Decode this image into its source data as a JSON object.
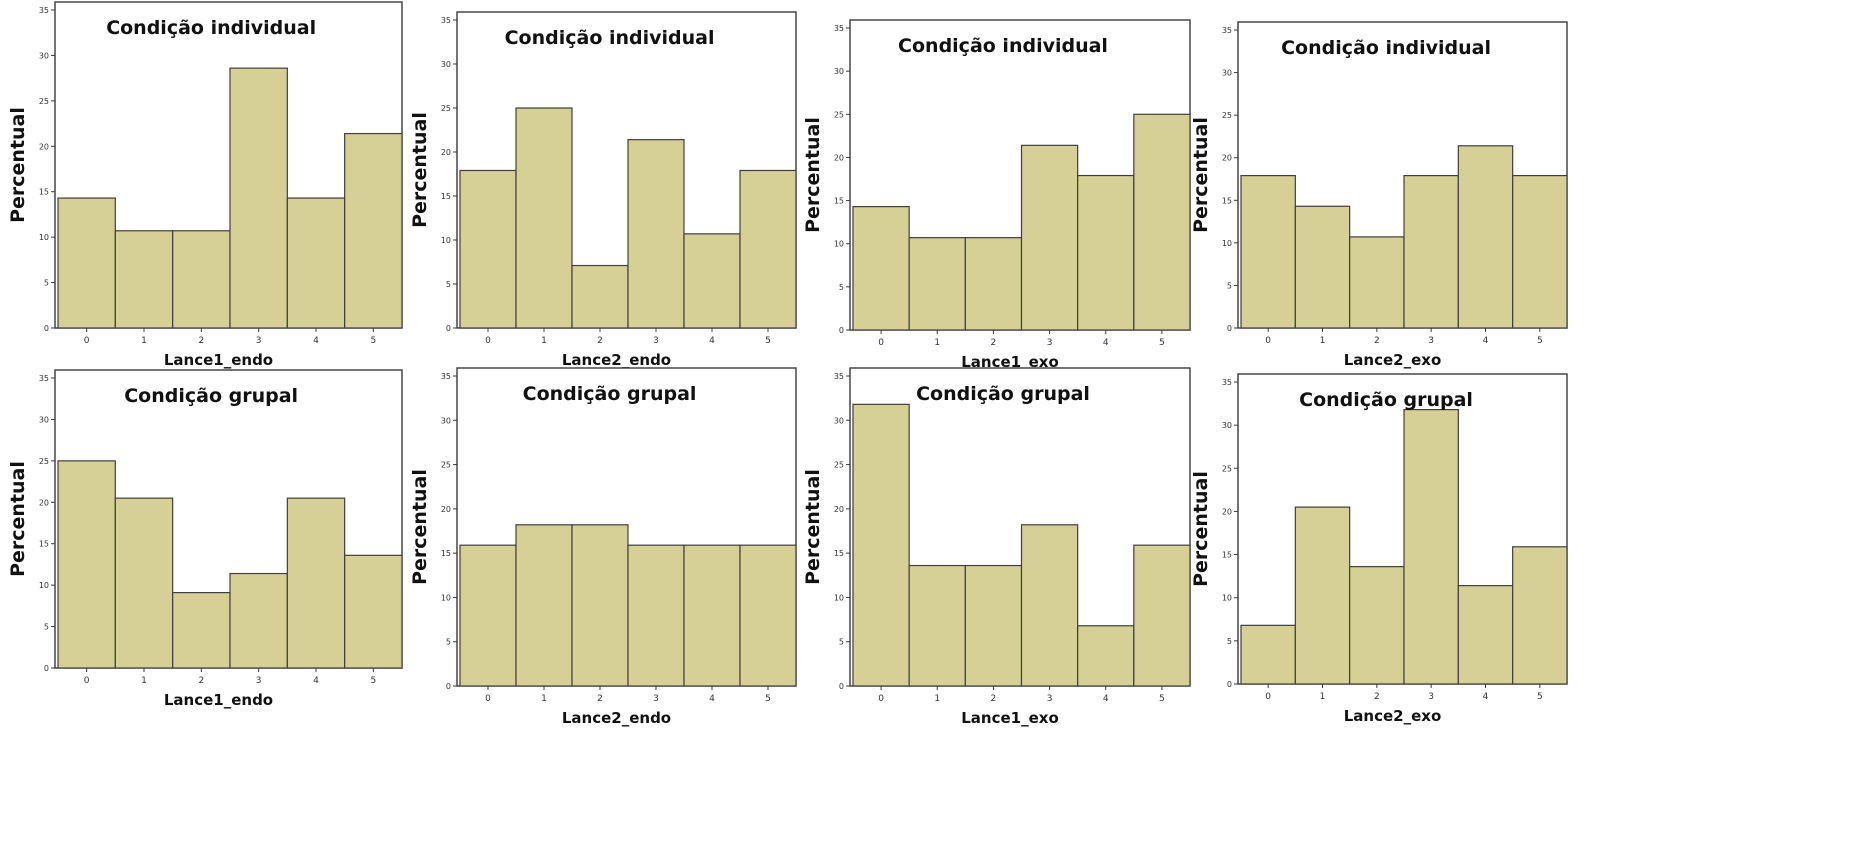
{
  "chart_data": [
    {
      "type": "bar",
      "title": "Condição individual",
      "ylabel": "Percentual",
      "xlabel": "Lance1_endo",
      "categories": [
        "0",
        "1",
        "2",
        "3",
        "4",
        "5"
      ],
      "values": [
        14.3,
        10.7,
        10.7,
        28.6,
        14.3,
        21.4
      ],
      "ylim": [
        0,
        35
      ],
      "yticks": [
        "0",
        "5",
        "10",
        "15",
        "20",
        "25",
        "30",
        "35"
      ]
    },
    {
      "type": "bar",
      "title": "Condição individual",
      "ylabel": "Percentual",
      "xlabel": "Lance2_endo",
      "categories": [
        "0",
        "1",
        "2",
        "3",
        "4",
        "5"
      ],
      "values": [
        17.9,
        25.0,
        7.1,
        21.4,
        10.7,
        17.9
      ],
      "ylim": [
        0,
        35
      ],
      "yticks": [
        "0",
        "5",
        "10",
        "15",
        "20",
        "25",
        "30",
        "35"
      ]
    },
    {
      "type": "bar",
      "title": "Condição individual",
      "ylabel": "Percentual",
      "xlabel": "Lance1_exo",
      "categories": [
        "0",
        "1",
        "2",
        "3",
        "4",
        "5"
      ],
      "values": [
        14.3,
        10.7,
        10.7,
        21.4,
        17.9,
        25.0
      ],
      "ylim": [
        0,
        35
      ],
      "yticks": [
        "0",
        "5",
        "10",
        "15",
        "20",
        "25",
        "30",
        "35"
      ]
    },
    {
      "type": "bar",
      "title": "Condição individual",
      "ylabel": "Percentual",
      "xlabel": "Lance2_exo",
      "categories": [
        "0",
        "1",
        "2",
        "3",
        "4",
        "5"
      ],
      "values": [
        17.9,
        14.3,
        10.7,
        17.9,
        21.4,
        17.9
      ],
      "ylim": [
        0,
        35
      ],
      "yticks": [
        "0",
        "5",
        "10",
        "15",
        "20",
        "25",
        "30",
        "35"
      ]
    },
    {
      "type": "bar",
      "title": "Condição grupal",
      "ylabel": "Percentual",
      "xlabel": "Lance1_endo",
      "categories": [
        "0",
        "1",
        "2",
        "3",
        "4",
        "5"
      ],
      "values": [
        25.0,
        20.5,
        9.1,
        11.4,
        20.5,
        13.6
      ],
      "ylim": [
        0,
        35
      ],
      "yticks": [
        "0",
        "5",
        "10",
        "15",
        "20",
        "25",
        "30",
        "35"
      ]
    },
    {
      "type": "bar",
      "title": "Condição grupal",
      "ylabel": "Percentual",
      "xlabel": "Lance2_endo",
      "categories": [
        "0",
        "1",
        "2",
        "3",
        "4",
        "5"
      ],
      "values": [
        15.9,
        18.2,
        18.2,
        15.9,
        15.9,
        15.9
      ],
      "ylim": [
        0,
        35
      ],
      "yticks": [
        "0",
        "5",
        "10",
        "15",
        "20",
        "25",
        "30",
        "35"
      ]
    },
    {
      "type": "bar",
      "title": "Condição grupal",
      "ylabel": "Percentual",
      "xlabel": "Lance1_exo",
      "categories": [
        "0",
        "1",
        "2",
        "3",
        "4",
        "5"
      ],
      "values": [
        31.8,
        13.6,
        13.6,
        18.2,
        6.8,
        15.9
      ],
      "ylim": [
        0,
        35
      ],
      "yticks": [
        "0",
        "5",
        "10",
        "15",
        "20",
        "25",
        "30",
        "35"
      ]
    },
    {
      "type": "bar",
      "title": "Condição grupal",
      "ylabel": "Percentual",
      "xlabel": "Lance2_exo",
      "categories": [
        "0",
        "1",
        "2",
        "3",
        "4",
        "5"
      ],
      "values": [
        6.8,
        20.5,
        13.6,
        31.8,
        11.4,
        15.9
      ],
      "ylim": [
        0,
        35
      ],
      "yticks": [
        "0",
        "5",
        "10",
        "15",
        "20",
        "25",
        "30",
        "35"
      ]
    }
  ],
  "colors": {
    "bar_fill": "#d6cf96",
    "bar_stroke": "#3f3f3f",
    "frame": "#3a3a3a"
  }
}
